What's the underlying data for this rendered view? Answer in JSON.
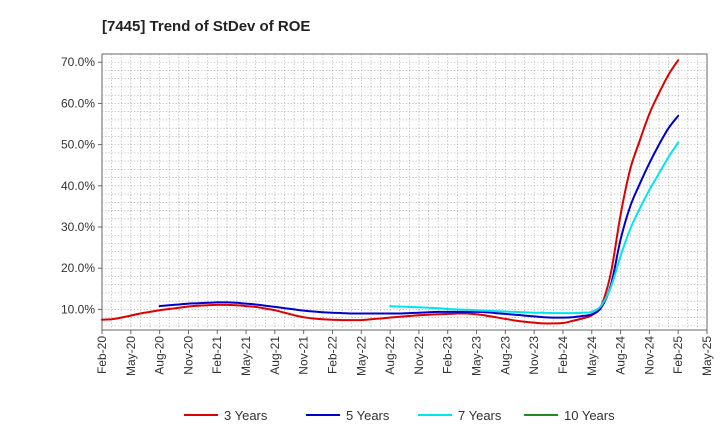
{
  "chart_data": {
    "type": "line",
    "title": "[7445]  Trend of StDev of ROE",
    "xlabel": "",
    "ylabel": "",
    "ylim": [
      5,
      72
    ],
    "yticks": [
      10,
      20,
      30,
      40,
      50,
      60,
      70
    ],
    "ytick_labels": [
      "10.0%",
      "20.0%",
      "30.0%",
      "40.0%",
      "50.0%",
      "60.0%",
      "70.0%"
    ],
    "x_categories": [
      "Feb-20",
      "May-20",
      "Aug-20",
      "Nov-20",
      "Feb-21",
      "May-21",
      "Aug-21",
      "Nov-21",
      "Feb-22",
      "May-22",
      "Aug-22",
      "Nov-22",
      "Feb-23",
      "May-23",
      "Aug-23",
      "Nov-23",
      "Feb-24",
      "May-24",
      "Aug-24",
      "Nov-24",
      "Feb-25",
      "May-25"
    ],
    "grid": true,
    "legend_position": "bottom",
    "series": [
      {
        "name": "3 Years",
        "color": "#dd0000",
        "x": [
          "Feb-20",
          "Mar-20",
          "Apr-20",
          "May-20",
          "Jun-20",
          "Jul-20",
          "Aug-20",
          "Sep-20",
          "Oct-20",
          "Nov-20",
          "Dec-20",
          "Jan-21",
          "Feb-21",
          "Mar-21",
          "Apr-21",
          "May-21",
          "Jun-21",
          "Jul-21",
          "Aug-21",
          "Sep-21",
          "Oct-21",
          "Nov-21",
          "Dec-21",
          "Jan-22",
          "Feb-22",
          "Mar-22",
          "Apr-22",
          "May-22",
          "Jun-22",
          "Jul-22",
          "Aug-22",
          "Sep-22",
          "Oct-22",
          "Nov-22",
          "Dec-22",
          "Jan-23",
          "Feb-23",
          "Mar-23",
          "Apr-23",
          "May-23",
          "Jun-23",
          "Jul-23",
          "Aug-23",
          "Sep-23",
          "Oct-23",
          "Nov-23",
          "Dec-23",
          "Jan-24",
          "Feb-24",
          "Mar-24",
          "Apr-24",
          "May-24",
          "Jun-24",
          "Jul-24",
          "Aug-24",
          "Sep-24",
          "Oct-24",
          "Nov-24",
          "Dec-24",
          "Jan-25",
          "Feb-25"
        ],
        "values": [
          7.5,
          7.6,
          8.0,
          8.5,
          9.0,
          9.4,
          9.8,
          10.1,
          10.4,
          10.7,
          10.9,
          11.0,
          11.1,
          11.1,
          11.0,
          10.8,
          10.6,
          10.2,
          9.8,
          9.2,
          8.6,
          8.1,
          7.8,
          7.6,
          7.5,
          7.4,
          7.4,
          7.4,
          7.6,
          7.8,
          8.0,
          8.2,
          8.4,
          8.6,
          8.7,
          8.8,
          8.9,
          9.0,
          9.0,
          8.8,
          8.5,
          8.1,
          7.7,
          7.3,
          7.0,
          6.8,
          6.6,
          6.6,
          6.7,
          7.2,
          7.8,
          8.6,
          11.0,
          19.0,
          33.0,
          44.0,
          51.0,
          57.5,
          62.5,
          67.0,
          70.5
        ]
      },
      {
        "name": "5 Years",
        "color": "#0000cc",
        "x": [
          "Aug-20",
          "Sep-20",
          "Oct-20",
          "Nov-20",
          "Dec-20",
          "Jan-21",
          "Feb-21",
          "Mar-21",
          "Apr-21",
          "May-21",
          "Jun-21",
          "Jul-21",
          "Aug-21",
          "Sep-21",
          "Oct-21",
          "Nov-21",
          "Dec-21",
          "Jan-22",
          "Feb-22",
          "Mar-22",
          "Apr-22",
          "May-22",
          "Jun-22",
          "Jul-22",
          "Aug-22",
          "Sep-22",
          "Oct-22",
          "Nov-22",
          "Dec-22",
          "Jan-23",
          "Feb-23",
          "Mar-23",
          "Apr-23",
          "May-23",
          "Jun-23",
          "Jul-23",
          "Aug-23",
          "Sep-23",
          "Oct-23",
          "Nov-23",
          "Dec-23",
          "Jan-24",
          "Feb-24",
          "Mar-24",
          "Apr-24",
          "May-24",
          "Jun-24",
          "Jul-24",
          "Aug-24",
          "Sep-24",
          "Oct-24",
          "Nov-24",
          "Dec-24",
          "Jan-25",
          "Feb-25"
        ],
        "values": [
          10.8,
          11.0,
          11.2,
          11.4,
          11.5,
          11.6,
          11.7,
          11.7,
          11.6,
          11.4,
          11.2,
          10.9,
          10.6,
          10.3,
          10.0,
          9.7,
          9.5,
          9.3,
          9.2,
          9.1,
          9.0,
          9.0,
          9.0,
          9.0,
          9.0,
          9.0,
          9.1,
          9.2,
          9.3,
          9.4,
          9.4,
          9.4,
          9.4,
          9.4,
          9.3,
          9.1,
          8.9,
          8.7,
          8.5,
          8.3,
          8.1,
          8.0,
          8.0,
          8.1,
          8.4,
          8.8,
          10.5,
          16.0,
          27.0,
          35.0,
          40.5,
          45.5,
          50.0,
          54.0,
          57.0
        ]
      },
      {
        "name": "7 Years",
        "color": "#00e5ee",
        "x": [
          "Aug-22",
          "Sep-22",
          "Oct-22",
          "Nov-22",
          "Dec-22",
          "Jan-23",
          "Feb-23",
          "Mar-23",
          "Apr-23",
          "May-23",
          "Jun-23",
          "Jul-23",
          "Aug-23",
          "Sep-23",
          "Oct-23",
          "Nov-23",
          "Dec-23",
          "Jan-24",
          "Feb-24",
          "Mar-24",
          "Apr-24",
          "May-24",
          "Jun-24",
          "Jul-24",
          "Aug-24",
          "Sep-24",
          "Oct-24",
          "Nov-24",
          "Dec-24",
          "Jan-25",
          "Feb-25"
        ],
        "values": [
          10.8,
          10.7,
          10.6,
          10.5,
          10.4,
          10.3,
          10.1,
          10.0,
          9.9,
          9.8,
          9.7,
          9.6,
          9.5,
          9.4,
          9.3,
          9.2,
          9.2,
          9.1,
          9.1,
          9.1,
          9.2,
          9.4,
          11.0,
          15.5,
          23.0,
          29.5,
          34.5,
          39.0,
          43.0,
          47.0,
          50.5
        ]
      },
      {
        "name": "10 Years",
        "color": "#228b22",
        "x": [],
        "values": []
      }
    ]
  }
}
